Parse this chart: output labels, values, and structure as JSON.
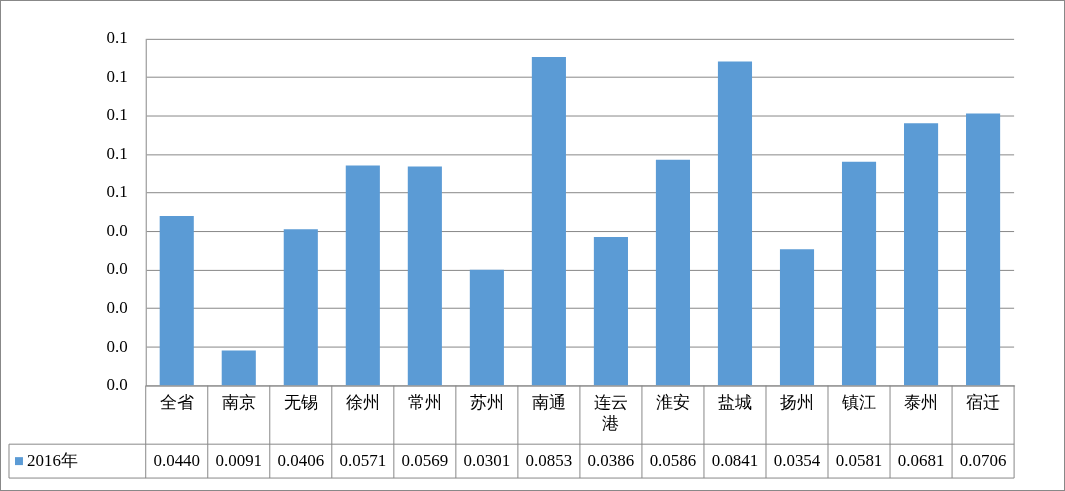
{
  "chart_data": {
    "type": "bar",
    "categories": [
      "全省",
      "南京",
      "无锡",
      "徐州",
      "常州",
      "苏州",
      "南通",
      "连云港",
      "淮安",
      "盐城",
      "扬州",
      "镇江",
      "泰州",
      "宿迁"
    ],
    "series": [
      {
        "name": "2016年",
        "color": "#5b9bd5",
        "values": [
          0.044,
          0.0091,
          0.0406,
          0.0571,
          0.0569,
          0.0301,
          0.0853,
          0.0386,
          0.0586,
          0.0841,
          0.0354,
          0.0581,
          0.0681,
          0.0706
        ],
        "value_labels": [
          "0.0440",
          "0.0091",
          "0.0406",
          "0.0571",
          "0.0569",
          "0.0301",
          "0.0853",
          "0.0386",
          "0.0586",
          "0.0841",
          "0.0354",
          "0.0581",
          "0.0681",
          "0.0706"
        ]
      }
    ],
    "ylim": [
      0,
      0.09
    ],
    "yticks": [
      {
        "value": 0,
        "label": "0.0"
      },
      {
        "value": 0.01,
        "label": "0.0"
      },
      {
        "value": 0.02,
        "label": "0.0"
      },
      {
        "value": 0.03,
        "label": "0.0"
      },
      {
        "value": 0.04,
        "label": "0.0"
      },
      {
        "value": 0.05,
        "label": "0.1"
      },
      {
        "value": 0.06,
        "label": "0.1"
      },
      {
        "value": 0.07,
        "label": "0.1"
      },
      {
        "value": 0.08,
        "label": "0.1"
      },
      {
        "value": 0.09,
        "label": "0.1"
      }
    ],
    "grid": "y",
    "legend": "bottom",
    "data_labels": true
  }
}
